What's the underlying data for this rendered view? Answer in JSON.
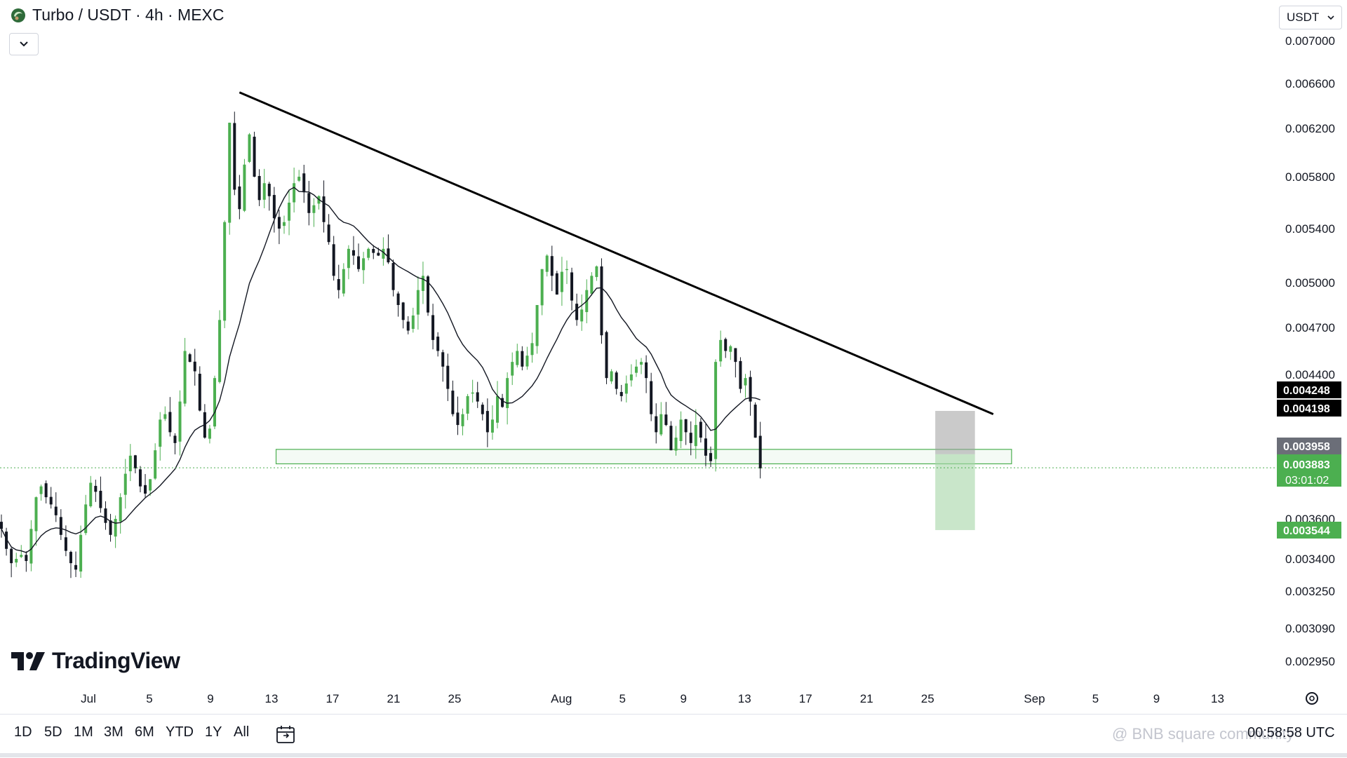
{
  "header": {
    "title": "Turbo / USDT · 4h · MEXC",
    "currency": "USDT"
  },
  "branding": {
    "logo_text": "TradingView"
  },
  "time_range_buttons": [
    "1D",
    "5D",
    "1M",
    "3M",
    "6M",
    "YTD",
    "1Y",
    "All"
  ],
  "clock": "00:58:58 UTC",
  "watermark": "@ BNB square community",
  "colors": {
    "up": "#4caf50",
    "down": "#131722",
    "ma": "#131722",
    "trendline": "#000000",
    "zone_border": "#4caf50",
    "risk_box": "#9e9e9e",
    "reward_box": "#a5d6a7",
    "last_price_label": "#4caf50",
    "black_label": "#000000",
    "gray_label": "#6b6e78"
  },
  "chart_data": {
    "type": "candlestick",
    "symbol": "Turbo / USDT",
    "interval": "4h",
    "exchange": "MEXC",
    "y_ticks": [
      0.007,
      0.0066,
      0.0062,
      0.0058,
      0.0054,
      0.005,
      0.0047,
      0.0044,
      0.0036,
      0.0034,
      0.00325,
      0.00309,
      0.00295
    ],
    "y_tick_labels": [
      "0.007000",
      "0.006600",
      "0.006200",
      "0.005800",
      "0.005400",
      "0.005000",
      "0.004700",
      "0.004400",
      "0.003600",
      "0.003400",
      "0.003250",
      "0.003090",
      "0.002950"
    ],
    "x_tick_labels": [
      "Jul",
      "5",
      "9",
      "13",
      "17",
      "21",
      "25",
      "Aug",
      "5",
      "9",
      "13",
      "17",
      "21",
      "25",
      "Sep",
      "5",
      "9",
      "13"
    ],
    "x_ticks_day_index": [
      0,
      4,
      8,
      12,
      16,
      20,
      24,
      31,
      35,
      39,
      43,
      47,
      51,
      55,
      62,
      66,
      70,
      74
    ],
    "price_labels": [
      {
        "value": "0.004248",
        "style": "black"
      },
      {
        "value": "0.004198",
        "style": "black"
      },
      {
        "value": "0.003958",
        "style": "gray"
      },
      {
        "value": "0.003883",
        "style": "green",
        "countdown": "03:01:02"
      },
      {
        "value": "0.003544",
        "style": "green"
      }
    ],
    "last_price": 0.003883,
    "trendline": [
      [
        9.9,
        0.00652
      ],
      [
        59.3,
        0.00418
      ]
    ],
    "support_zone": {
      "top": 0.003985,
      "bottom": 0.003905,
      "start_day": 12.3,
      "end_day": 60.5
    },
    "position": {
      "entry": 0.003958,
      "stop": 0.004198,
      "target": 0.003544,
      "start_day": 55.5,
      "end_day": 58.1
    },
    "closes": [
      0.00355,
      0.00345,
      0.00338,
      0.0034,
      0.00342,
      0.00339,
      0.00355,
      0.00372,
      0.00378,
      0.00372,
      0.00368,
      0.00362,
      0.00352,
      0.00344,
      0.00338,
      0.00335,
      0.00352,
      0.00368,
      0.0038,
      0.00375,
      0.00366,
      0.00358,
      0.00352,
      0.0036,
      0.00372,
      0.00385,
      0.00395,
      0.00388,
      0.00378,
      0.00374,
      0.00382,
      0.00398,
      0.00415,
      0.00418,
      0.00408,
      0.00402,
      0.00425,
      0.00455,
      0.00448,
      0.00442,
      0.0042,
      0.00405,
      0.0041,
      0.00438,
      0.00475,
      0.00545,
      0.00625,
      0.0057,
      0.00555,
      0.0059,
      0.00615,
      0.0058,
      0.00562,
      0.00575,
      0.00565,
      0.00548,
      0.0054,
      0.00545,
      0.0056,
      0.00575,
      0.0058,
      0.00568,
      0.00552,
      0.00558,
      0.00565,
      0.00545,
      0.0053,
      0.00505,
      0.00495,
      0.0051,
      0.00525,
      0.0052,
      0.0051,
      0.00518,
      0.00525,
      0.00522,
      0.0052,
      0.00525,
      0.00515,
      0.00495,
      0.00485,
      0.00475,
      0.00468,
      0.00478,
      0.00495,
      0.00505,
      0.0048,
      0.00462,
      0.00455,
      0.00445,
      0.00432,
      0.00418,
      0.00412,
      0.00418,
      0.00428,
      0.0043,
      0.00425,
      0.00418,
      0.00408,
      0.00415,
      0.00428,
      0.00422,
      0.00438,
      0.00448,
      0.00455,
      0.00445,
      0.00452,
      0.0046,
      0.00485,
      0.0051,
      0.0052,
      0.00505,
      0.00492,
      0.00508,
      0.0051,
      0.00488,
      0.00475,
      0.00482,
      0.00495,
      0.00505,
      0.00512,
      0.00465,
      0.00438,
      0.00442,
      0.00432,
      0.00428,
      0.00435,
      0.0044,
      0.00445,
      0.00448,
      0.00438,
      0.00418,
      0.00408,
      0.00418,
      0.00412,
      0.00398,
      0.00405,
      0.00415,
      0.00408,
      0.00402,
      0.00412,
      0.00405,
      0.00395,
      0.00392,
      0.00448,
      0.00462,
      0.00455,
      0.00458,
      0.00448,
      0.00432,
      0.00438,
      0.00425,
      0.00405,
      0.00388
    ]
  }
}
